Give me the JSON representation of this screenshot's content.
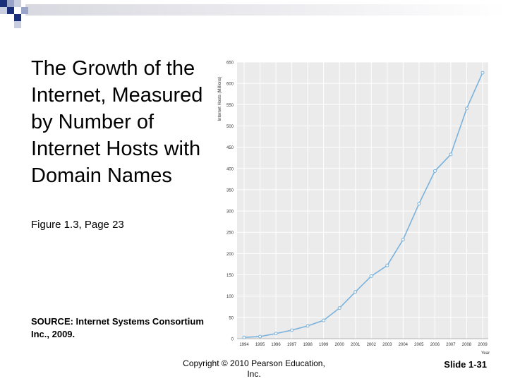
{
  "slide": {
    "title": "The Growth of the\nInternet, Measured\nby Number of\nInternet Hosts with\nDomain Names",
    "figure_ref": "Figure 1.3, Page 23",
    "source": "SOURCE: Internet Systems Consortium\nInc., 2009.",
    "copyright": "Copyright © 2010 Pearson Education,\nInc.",
    "slide_number": "Slide 1-31",
    "accent_color": "#1a2f7a"
  },
  "chart_data": {
    "type": "line",
    "title": "",
    "xlabel": "Year",
    "ylabel": "Internet Hosts (Millions)",
    "categories": [
      "1994",
      "1995",
      "1996",
      "1997",
      "1998",
      "1999",
      "2000",
      "2001",
      "2002",
      "2003",
      "2004",
      "2005",
      "2006",
      "2007",
      "2008",
      "2009"
    ],
    "values": [
      3,
      5,
      12,
      20,
      30,
      43,
      72,
      110,
      147,
      172,
      233,
      317,
      394,
      433,
      541,
      625
    ],
    "yticks": [
      "0",
      "50",
      "100",
      "150",
      "200",
      "250",
      "300",
      "350",
      "400",
      "450",
      "500",
      "550",
      "600",
      "650"
    ],
    "ylim": [
      0,
      650
    ],
    "grid": true,
    "line_color": "#7ab2dc",
    "background": "#ebebeb"
  }
}
